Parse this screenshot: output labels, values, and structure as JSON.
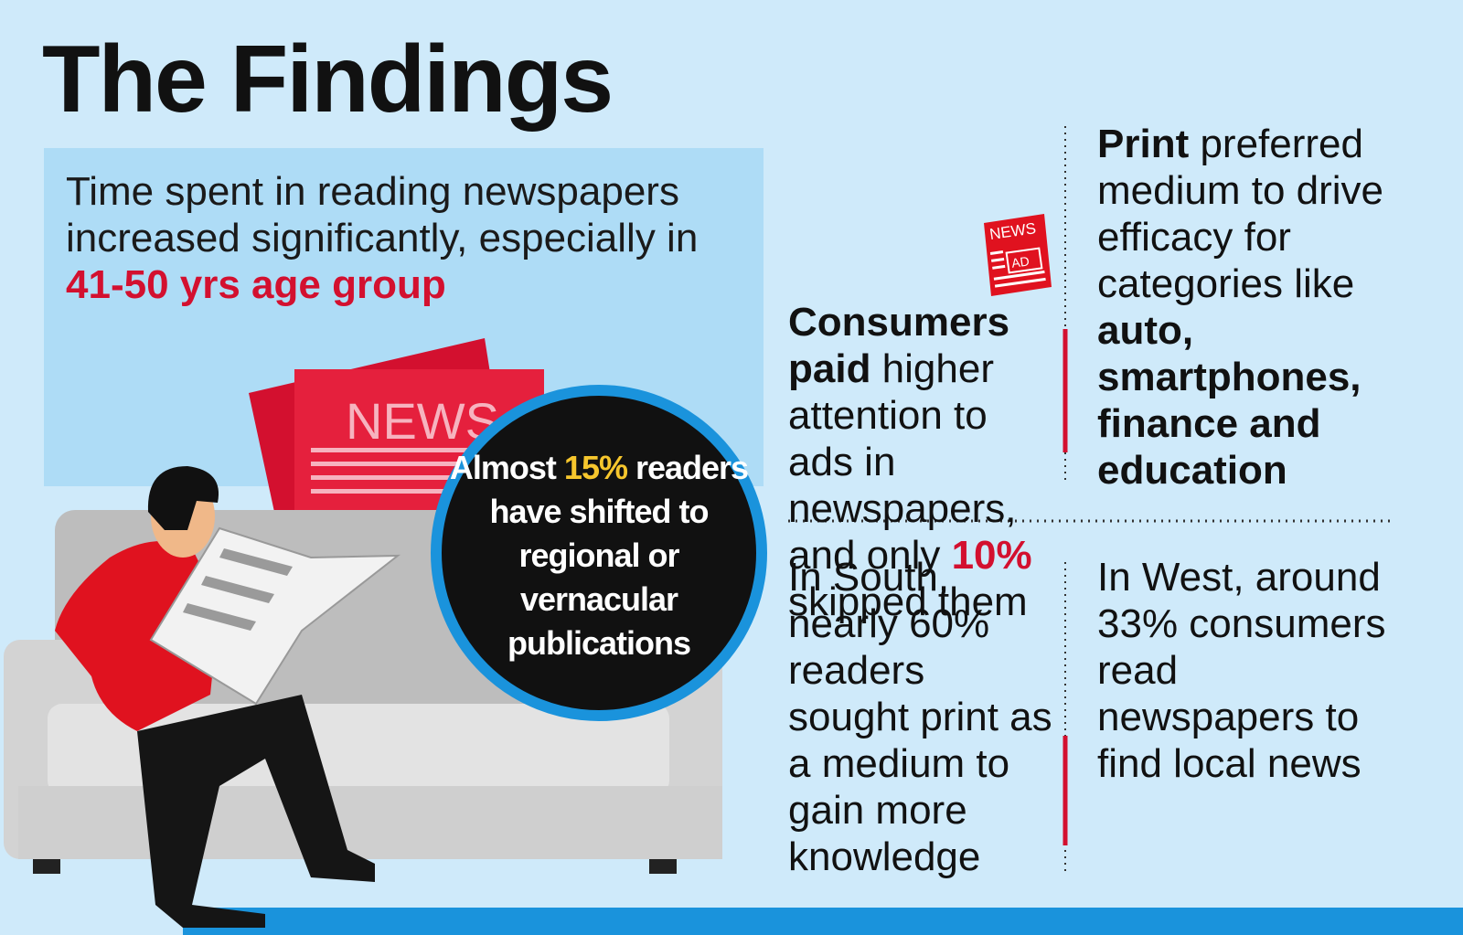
{
  "title": "The Findings",
  "intro": {
    "parts": [
      {
        "text": "Time spent in reading newspapers increased significantly, especially in "
      },
      {
        "text": "41-50 yrs age group",
        "highlight": true
      }
    ]
  },
  "illustration": {
    "newspaper_label": "NEWS"
  },
  "callout": {
    "parts": [
      {
        "text": "Almost "
      },
      {
        "text": "15%",
        "highlight": true
      },
      {
        "text": " readers have shifted to regional or vernacular publications"
      }
    ]
  },
  "icon": {
    "top": "NEWS",
    "bottom": "AD"
  },
  "findings": [
    {
      "parts": [
        {
          "text": "Consumers paid",
          "bold": true
        },
        {
          "text": " higher attention to ads in newspapers, and only "
        },
        {
          "text": "10%",
          "highlight": true
        },
        {
          "text": " skipped them"
        }
      ]
    },
    {
      "parts": [
        {
          "text": "Print",
          "bold": true
        },
        {
          "text": " preferred medium to drive efficacy for categories like "
        },
        {
          "text": "auto, smartphones, finance and education",
          "bold": true
        }
      ]
    },
    {
      "parts": [
        {
          "text": "In South, nearly 60% readers sought print as a medium to gain more knowledge"
        }
      ]
    },
    {
      "parts": [
        {
          "text": "In West, around 33% consumers read newspapers to find local news"
        }
      ]
    }
  ]
}
